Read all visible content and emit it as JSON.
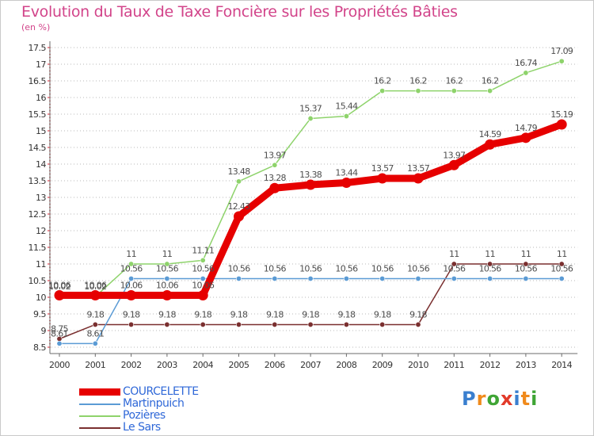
{
  "header": {
    "title": "Evolution du Taux de Taxe Foncière sur les Propriétés Bâties",
    "unit": "(en %)"
  },
  "logo": {
    "text": "Proxiti",
    "colors": [
      "#3a7fcf",
      "#f08a1c",
      "#3fa535",
      "#e23a2a",
      "#3a7fcf",
      "#f08a1c",
      "#3fa535"
    ]
  },
  "colors": {
    "title": "#d2448a",
    "grid": "#b8b8b8",
    "axis": "#6b6b6b"
  },
  "chart_data": {
    "type": "line",
    "x": [
      "2000",
      "2001",
      "2002",
      "2003",
      "2004",
      "2005",
      "2006",
      "2007",
      "2008",
      "2009",
      "2010",
      "2011",
      "2012",
      "2013",
      "2014"
    ],
    "ylim": [
      8.5,
      17.5
    ],
    "yticks": [
      "8.5",
      "9",
      "9.5",
      "10",
      "10.5",
      "11",
      "11.5",
      "12",
      "12.5",
      "13",
      "13.5",
      "14",
      "14.5",
      "15",
      "15.5",
      "16",
      "16.5",
      "17",
      "17.5"
    ],
    "grid": "horizontal dotted",
    "legend": "bottom-left",
    "series": [
      {
        "name": "COURCELETTE",
        "color": "#e60000",
        "label_color": "#4d4d4d",
        "values": [
          10.06,
          10.06,
          10.06,
          10.06,
          10.06,
          12.43,
          13.28,
          13.38,
          13.44,
          13.57,
          13.57,
          13.97,
          14.59,
          14.79,
          15.19
        ],
        "labels": [
          "10.06",
          "10.06",
          "10.06",
          "10.06",
          "10.06",
          "12.43",
          "13.28",
          "13.38",
          "13.44",
          "13.57",
          "13.57",
          "13.97",
          "14.59",
          "14.79",
          "15.19"
        ]
      },
      {
        "name": "Martinpuich",
        "color": "#5b9bd5",
        "label_color": "#4d4d4d",
        "values": [
          8.61,
          8.61,
          10.56,
          10.56,
          10.56,
          10.56,
          10.56,
          10.56,
          10.56,
          10.56,
          10.56,
          10.56,
          10.56,
          10.56,
          10.56
        ],
        "labels": [
          "8.61",
          "8.61",
          "10.56",
          "10.56",
          "10.56",
          "10.56",
          "10.56",
          "10.56",
          "10.56",
          "10.56",
          "10.56",
          "10.56",
          "10.56",
          "10.56",
          "10.56"
        ]
      },
      {
        "name": "Pozières",
        "color": "#8ed36b",
        "label_color": "#4d4d4d",
        "values": [
          10.02,
          10.02,
          11,
          11,
          11.11,
          13.48,
          13.97,
          15.37,
          15.44,
          16.2,
          16.2,
          16.2,
          16.2,
          16.74,
          17.09
        ],
        "labels": [
          "10.02",
          "10.02",
          "11",
          "11",
          "11.11",
          "13.48",
          "13.97",
          "15.37",
          "15.44",
          "16.2",
          "16.2",
          "16.2",
          "16.2",
          "16.74",
          "17.09"
        ]
      },
      {
        "name": "Le Sars",
        "color": "#7a2f2f",
        "label_color": "#4d4d4d",
        "values": [
          8.75,
          9.18,
          9.18,
          9.18,
          9.18,
          9.18,
          9.18,
          9.18,
          9.18,
          9.18,
          9.18,
          11,
          11,
          11,
          11
        ],
        "labels": [
          "8.75",
          "9.18",
          "9.18",
          "9.18",
          "9.18",
          "9.18",
          "9.18",
          "9.18",
          "9.18",
          "9.18",
          "9.18",
          "11",
          "11",
          "11",
          "11"
        ]
      }
    ]
  }
}
